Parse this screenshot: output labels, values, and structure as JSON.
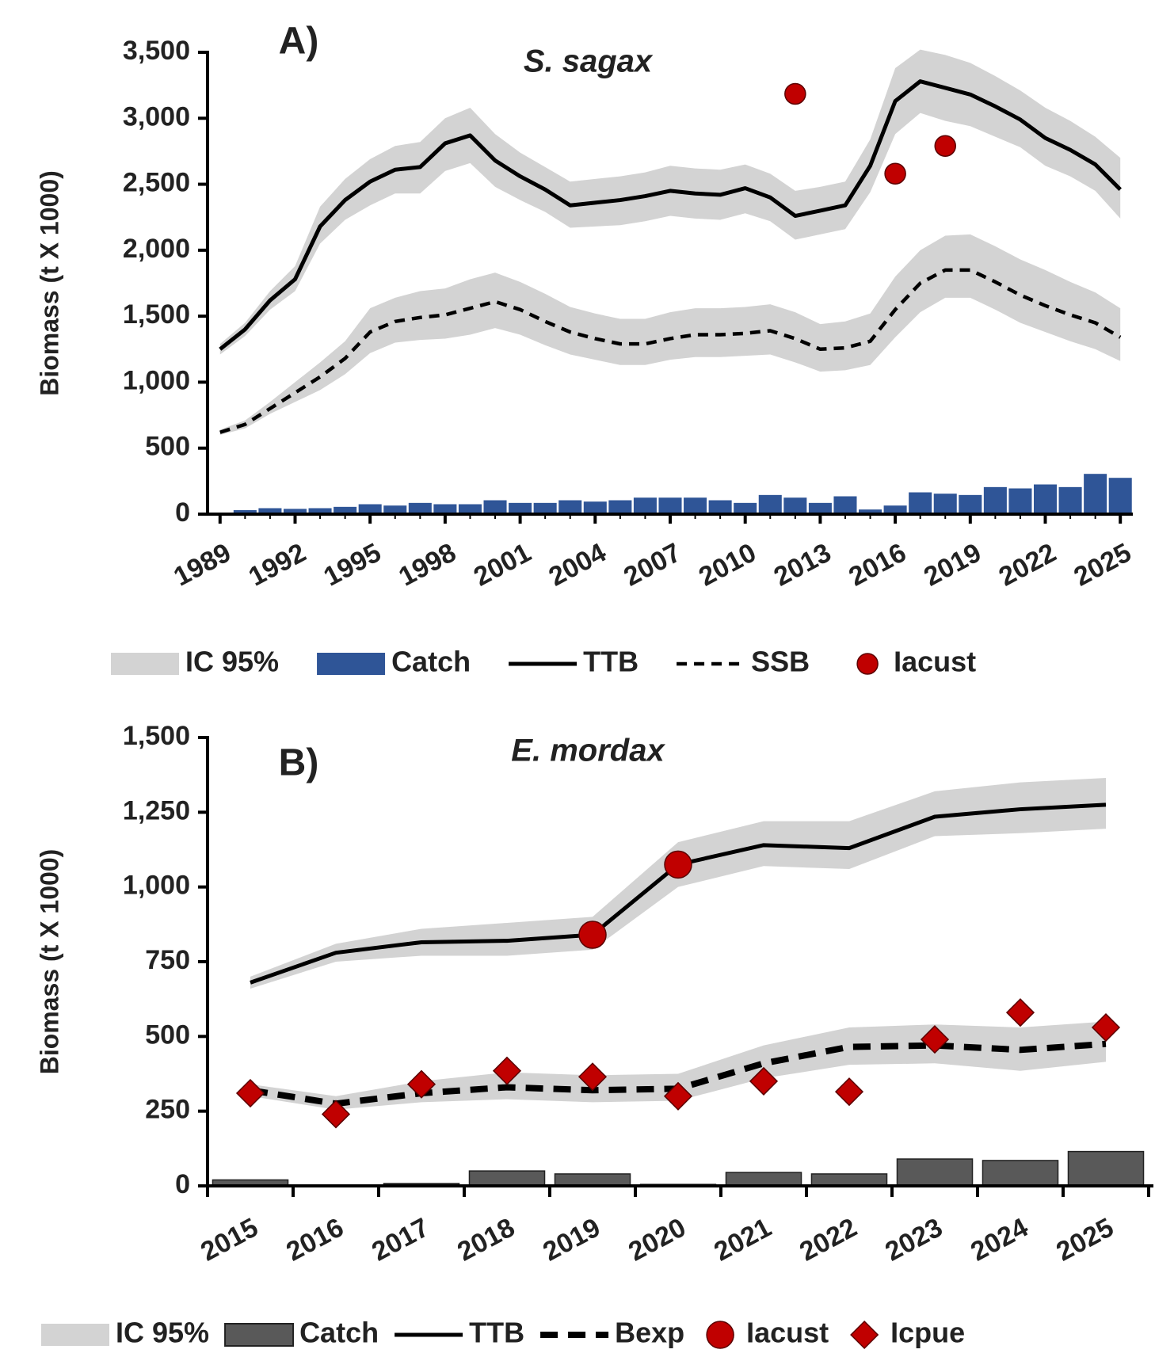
{
  "chart_data": [
    {
      "type": "line",
      "panel_label": "A)",
      "title": "S. sagax",
      "y_label": "Biomass (t X 1000)",
      "x": [
        1989,
        1990,
        1991,
        1992,
        1993,
        1994,
        1995,
        1996,
        1997,
        1998,
        1999,
        2000,
        2001,
        2002,
        2003,
        2004,
        2005,
        2006,
        2007,
        2008,
        2009,
        2010,
        2011,
        2012,
        2013,
        2014,
        2015,
        2016,
        2017,
        2018,
        2019,
        2020,
        2021,
        2022,
        2023,
        2024,
        2025
      ],
      "xlim": [
        1988.5,
        2025.5
      ],
      "xticks": [
        1989,
        1992,
        1995,
        1998,
        2001,
        2004,
        2007,
        2010,
        2013,
        2016,
        2019,
        2022,
        2025
      ],
      "ylim": [
        0,
        3500
      ],
      "yticks": [
        0,
        500,
        {
          "value": 1000,
          "label": "1,000"
        },
        {
          "value": 1500,
          "label": "1,500"
        },
        {
          "value": 2000,
          "label": "2,000"
        },
        {
          "value": 2500,
          "label": "2,500"
        },
        {
          "value": 3000,
          "label": "3,000"
        },
        {
          "value": 3500,
          "label": "3,500"
        }
      ],
      "series": [
        {
          "name": "IC 95%",
          "kind": "band",
          "color": "#d3d3d3",
          "bands": [
            {
              "lower": [
                1210,
                1350,
                1550,
                1690,
                2050,
                2230,
                2340,
                2430,
                2430,
                2600,
                2660,
                2480,
                2380,
                2290,
                2170,
                2180,
                2190,
                2220,
                2260,
                2240,
                2230,
                2280,
                2220,
                2080,
                2120,
                2160,
                2440,
                2880,
                3040,
                2980,
                2940,
                2860,
                2780,
                2640,
                2560,
                2450,
                2240
              ],
              "upper": [
                1290,
                1450,
                1690,
                1880,
                2330,
                2540,
                2690,
                2790,
                2820,
                3000,
                3080,
                2880,
                2740,
                2630,
                2520,
                2540,
                2560,
                2590,
                2640,
                2620,
                2610,
                2650,
                2580,
                2450,
                2480,
                2520,
                2840,
                3380,
                3520,
                3480,
                3420,
                3320,
                3210,
                3080,
                2980,
                2860,
                2700
              ]
            },
            {
              "lower": [
                600,
                650,
                760,
                850,
                940,
                1060,
                1220,
                1300,
                1320,
                1330,
                1360,
                1410,
                1360,
                1280,
                1210,
                1170,
                1130,
                1130,
                1170,
                1190,
                1190,
                1200,
                1210,
                1150,
                1080,
                1090,
                1130,
                1340,
                1530,
                1640,
                1640,
                1550,
                1450,
                1380,
                1310,
                1250,
                1160
              ],
              "upper": [
                640,
                710,
                850,
                1000,
                1150,
                1310,
                1560,
                1640,
                1690,
                1710,
                1780,
                1830,
                1760,
                1670,
                1570,
                1520,
                1480,
                1480,
                1530,
                1560,
                1560,
                1570,
                1590,
                1530,
                1440,
                1460,
                1520,
                1800,
                2000,
                2110,
                2120,
                2030,
                1930,
                1850,
                1760,
                1680,
                1560
              ]
            }
          ]
        },
        {
          "name": "Catch",
          "kind": "bar",
          "color": "#2f5597",
          "values": [
            10,
            30,
            45,
            40,
            45,
            55,
            75,
            65,
            85,
            75,
            75,
            105,
            85,
            85,
            105,
            95,
            105,
            125,
            125,
            125,
            105,
            85,
            145,
            125,
            85,
            135,
            35,
            65,
            165,
            155,
            145,
            205,
            195,
            225,
            205,
            305,
            275
          ]
        },
        {
          "name": "TTB",
          "kind": "line",
          "dash": "solid",
          "color": "#000000",
          "values": [
            1250,
            1400,
            1620,
            1780,
            2180,
            2380,
            2520,
            2610,
            2630,
            2810,
            2870,
            2680,
            2560,
            2460,
            2340,
            2360,
            2380,
            2410,
            2450,
            2430,
            2420,
            2470,
            2400,
            2260,
            2300,
            2340,
            2640,
            3130,
            3280,
            3230,
            3180,
            3090,
            2990,
            2850,
            2760,
            2650,
            2460
          ]
        },
        {
          "name": "SSB",
          "kind": "line",
          "dash": "dashed",
          "color": "#000000",
          "values": [
            620,
            680,
            800,
            920,
            1040,
            1180,
            1380,
            1460,
            1490,
            1510,
            1560,
            1610,
            1550,
            1460,
            1380,
            1330,
            1290,
            1290,
            1330,
            1360,
            1360,
            1370,
            1390,
            1330,
            1250,
            1260,
            1310,
            1550,
            1750,
            1850,
            1850,
            1760,
            1660,
            1580,
            1510,
            1450,
            1340
          ]
        },
        {
          "name": "Iacust",
          "kind": "scatter",
          "marker": "circle",
          "color": "#c00000",
          "x": [
            2012,
            2016,
            2018
          ],
          "values": [
            3185,
            2580,
            2790
          ]
        }
      ]
    },
    {
      "type": "line",
      "panel_label": "B)",
      "title": "E. mordax",
      "y_label": "Biomass (t X 1000)",
      "categories": [
        "2015",
        "2016",
        "2017",
        "2018",
        "2019",
        "2020",
        "2021",
        "2022",
        "2023",
        "2024",
        "2025"
      ],
      "ylim": [
        0,
        1500
      ],
      "yticks": [
        0,
        250,
        500,
        750,
        {
          "value": 1000,
          "label": "1,000"
        },
        {
          "value": 1250,
          "label": "1,250"
        },
        {
          "value": 1500,
          "label": "1,500"
        }
      ],
      "series": [
        {
          "name": "IC 95%",
          "kind": "band",
          "color": "#d3d3d3",
          "bands": [
            {
              "lower": [
                660,
                750,
                770,
                770,
                790,
                1000,
                1070,
                1060,
                1170,
                1180,
                1195
              ],
              "upper": [
                700,
                810,
                860,
                880,
                900,
                1150,
                1220,
                1220,
                1320,
                1350,
                1365
              ]
            },
            {
              "lower": [
                300,
                255,
                280,
                290,
                280,
                285,
                360,
                405,
                410,
                385,
                415
              ],
              "upper": [
                340,
                300,
                350,
                380,
                370,
                375,
                470,
                530,
                540,
                530,
                550
              ]
            }
          ]
        },
        {
          "name": "Catch",
          "kind": "bar",
          "color": "#595959",
          "values": [
            20,
            0,
            8,
            50,
            40,
            5,
            45,
            40,
            90,
            85,
            115
          ]
        },
        {
          "name": "TTB",
          "kind": "line",
          "dash": "solid",
          "color": "#000000",
          "values": [
            680,
            780,
            815,
            820,
            840,
            1075,
            1140,
            1130,
            1235,
            1260,
            1275
          ]
        },
        {
          "name": "Bexp",
          "kind": "line",
          "dash": "dashed",
          "color": "#000000",
          "values": [
            320,
            275,
            310,
            330,
            320,
            325,
            410,
            465,
            470,
            455,
            475
          ]
        },
        {
          "name": "Iacust",
          "kind": "scatter",
          "marker": "circle",
          "color": "#c00000",
          "values": [
            null,
            null,
            null,
            null,
            840,
            1075,
            null,
            null,
            null,
            null,
            null
          ]
        },
        {
          "name": "Icpue",
          "kind": "scatter",
          "marker": "diamond",
          "color": "#c00000",
          "values": [
            310,
            240,
            340,
            385,
            365,
            300,
            350,
            315,
            490,
            580,
            530
          ]
        }
      ]
    }
  ]
}
